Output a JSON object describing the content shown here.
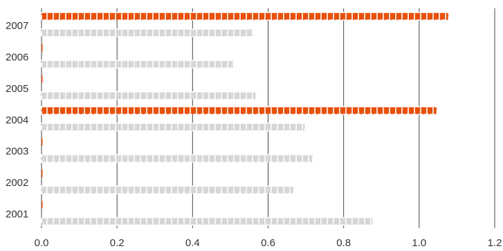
{
  "chart_data": {
    "type": "bar",
    "orientation": "horizontal",
    "categories": [
      "2001",
      "2002",
      "2003",
      "2004",
      "2005",
      "2006",
      "2007"
    ],
    "series": [
      {
        "color": "#e8500a",
        "values": [
          0.002,
          0.002,
          0.002,
          1.047,
          0.002,
          0.002,
          1.078
        ]
      },
      {
        "color": "#d6d6d6",
        "values": [
          0.878,
          0.668,
          0.718,
          0.698,
          0.568,
          0.508,
          0.558
        ]
      }
    ],
    "x_ticks": [
      "0.0",
      "0.2",
      "0.4",
      "0.6",
      "0.8",
      "1.0",
      "1.2"
    ],
    "xlim": [
      0,
      1.2
    ],
    "grid": "vertical",
    "bar_style": "segmented",
    "title": "",
    "xlabel": "",
    "ylabel": ""
  }
}
